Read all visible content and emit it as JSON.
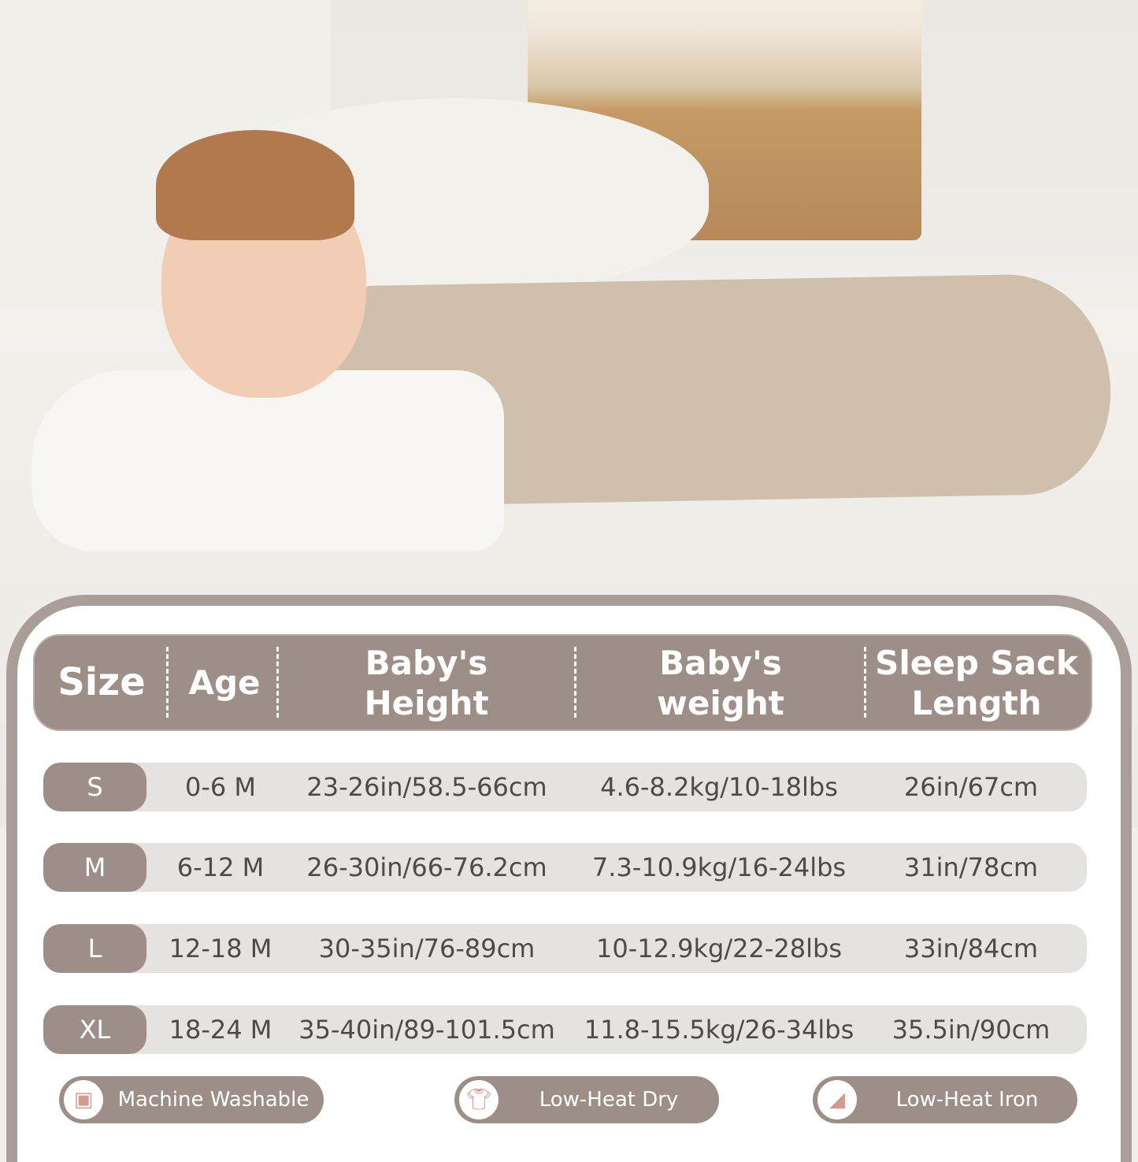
{
  "table": {
    "headers": [
      "Size",
      "Age",
      "Baby's\nHeight",
      "Baby's\nweight",
      "Sleep Sack\nLength"
    ],
    "rows": [
      {
        "size": "S",
        "age": "0-6 M",
        "height": "23-26in/58.5-66cm",
        "weight": "4.6-8.2kg/10-18lbs",
        "length": "26in/67cm"
      },
      {
        "size": "M",
        "age": "6-12 M",
        "height": "26-30in/66-76.2cm",
        "weight": "7.3-10.9kg/16-24lbs",
        "length": "31in/78cm"
      },
      {
        "size": "L",
        "age": "12-18 M",
        "height": "30-35in/76-89cm",
        "weight": "10-12.9kg/22-28lbs",
        "length": "33in/84cm"
      },
      {
        "size": "XL",
        "age": "18-24 M",
        "height": "35-40in/89-101.5cm",
        "weight": "11.8-15.5kg/26-34lbs",
        "length": "35.5in/90cm"
      }
    ]
  },
  "care": [
    {
      "label": "Machine Washable",
      "icon": "washing-machine-icon"
    },
    {
      "label": "Low-Heat Dry",
      "icon": "hanging-shirt-icon"
    },
    {
      "label": "Low-Heat Iron",
      "icon": "iron-icon"
    }
  ],
  "colors": {
    "accent": "#9d8f87",
    "row_bg": "#e6e2df",
    "border": "#a99e97",
    "icon": "#d49a90"
  }
}
